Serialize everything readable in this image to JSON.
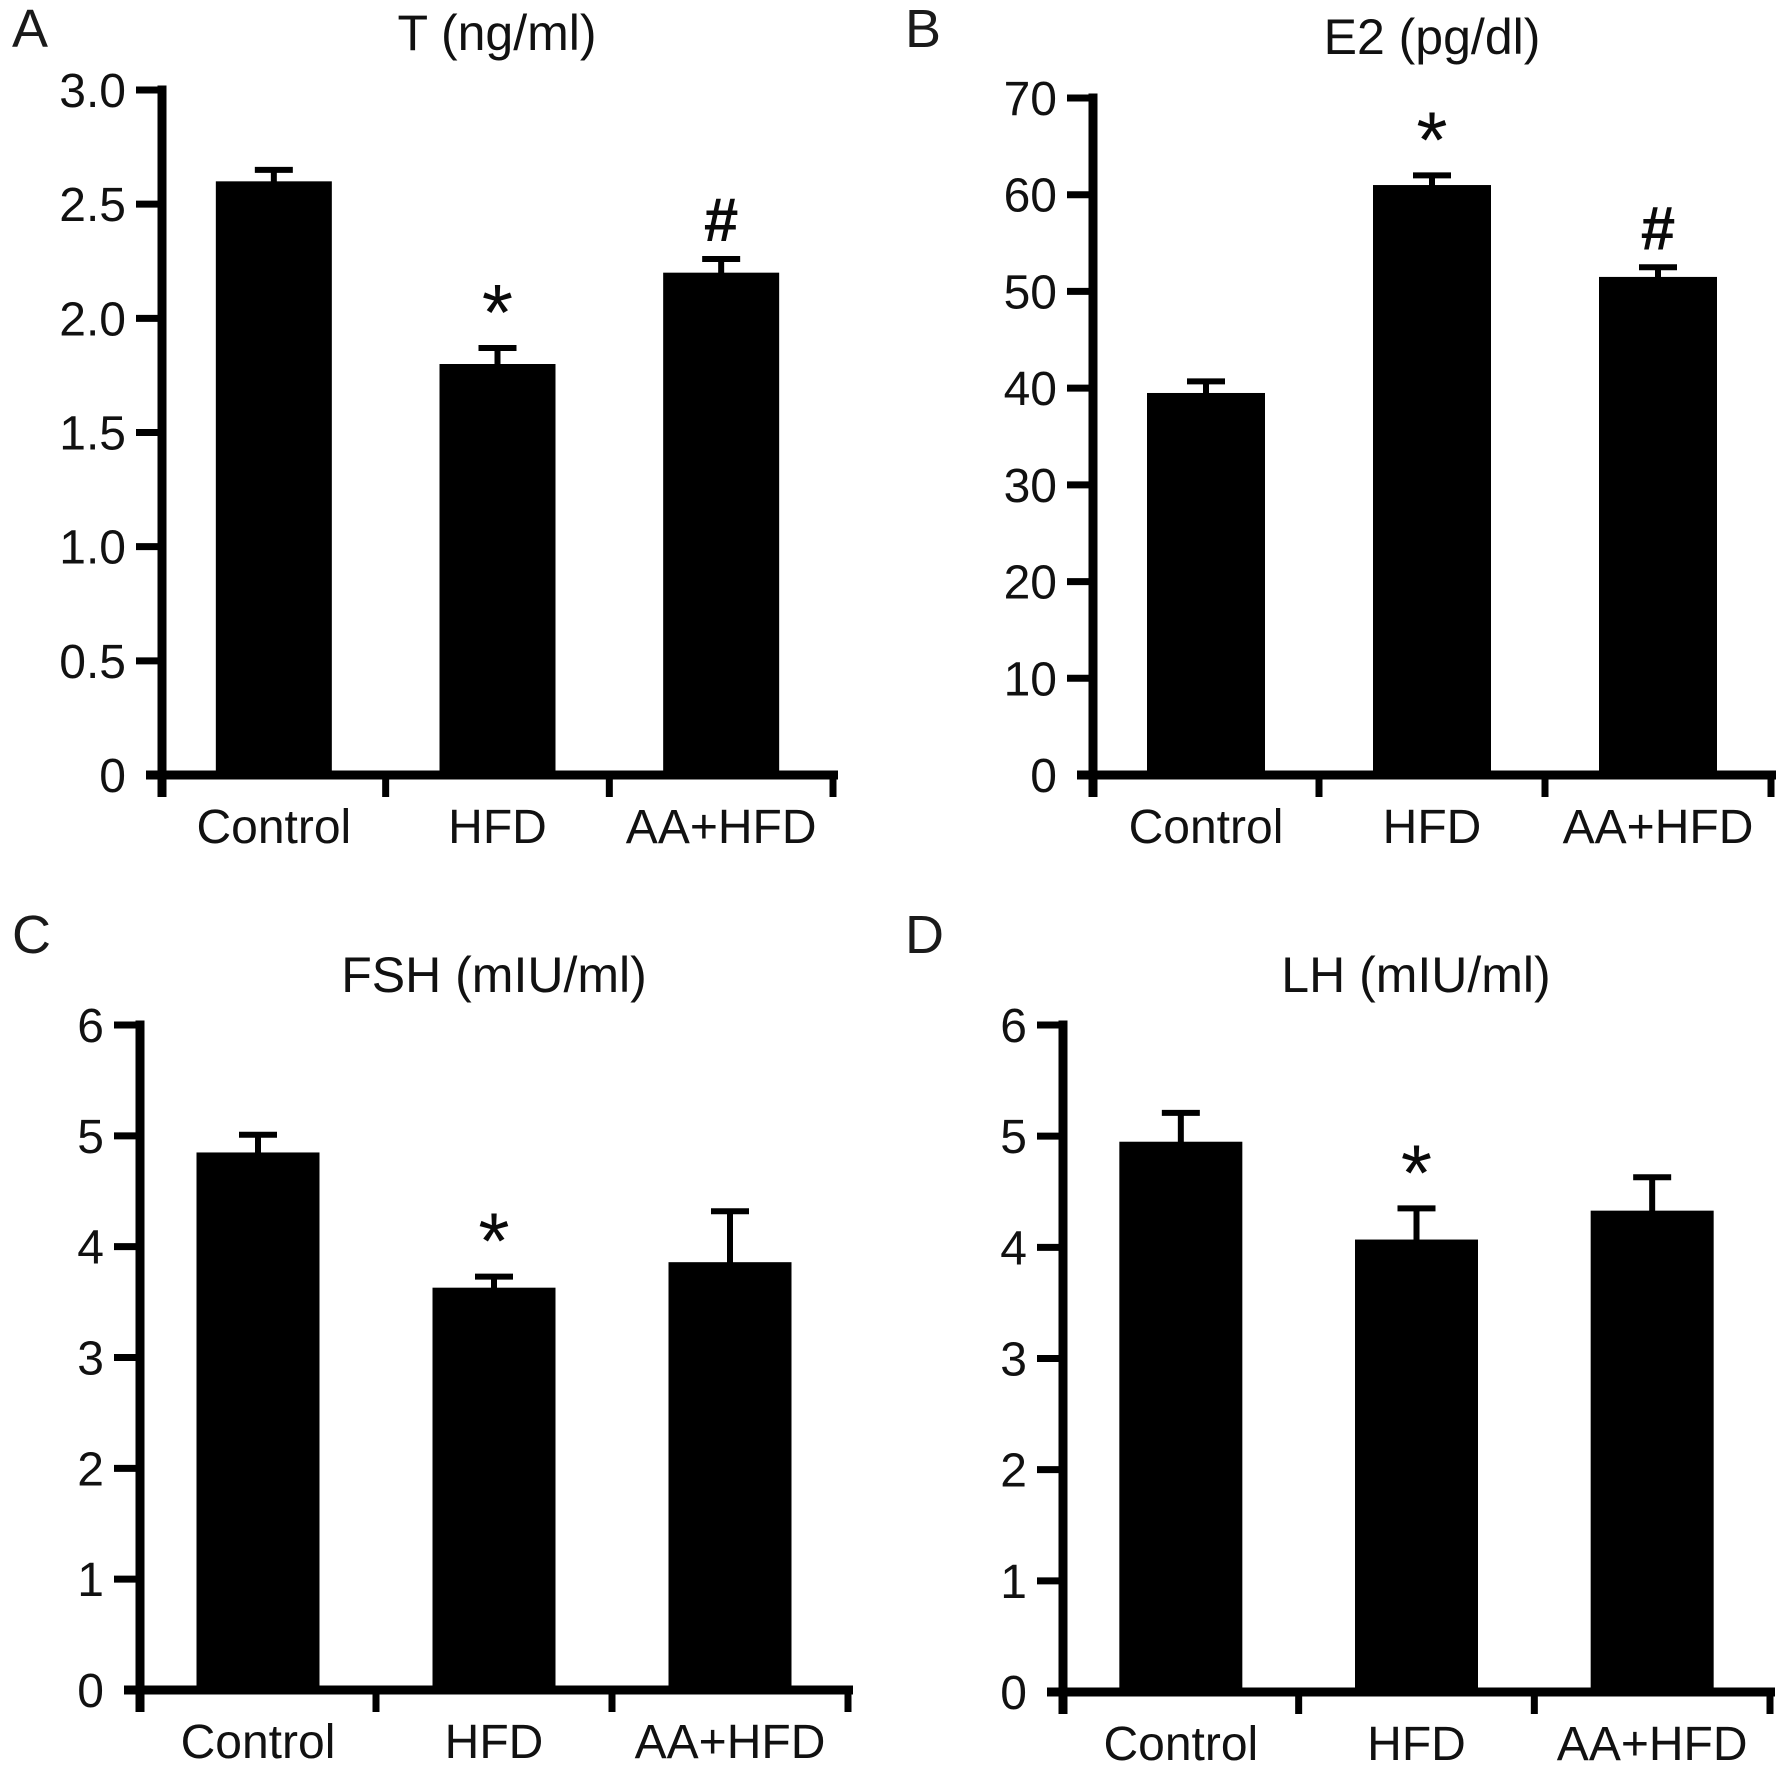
{
  "figure": {
    "background_color": "#ffffff",
    "bar_color": "#000000",
    "axis_color": "#000000",
    "text_color": "#111111"
  },
  "chart_data": [
    {
      "panel_label": "A",
      "type": "bar",
      "title": "T (ng/ml)",
      "categories": [
        "Control",
        "HFD",
        "AA+HFD"
      ],
      "values": [
        2.6,
        1.8,
        2.2
      ],
      "errors": [
        0.05,
        0.07,
        0.06
      ],
      "annotations": [
        "",
        "*",
        "#"
      ],
      "ylim": [
        0,
        3
      ],
      "yticks": [
        0,
        0.5,
        1,
        1.5,
        2,
        2.5,
        3
      ],
      "ytick_labels": [
        "0",
        "0.5",
        "1.0",
        "1.5",
        "2.0",
        "2.5",
        "3.0"
      ],
      "grid": "off",
      "legend": "none"
    },
    {
      "panel_label": "B",
      "type": "bar",
      "title": "E2 (pg/dl)",
      "categories": [
        "Control",
        "HFD",
        "AA+HFD"
      ],
      "values": [
        39.5,
        61,
        51.5
      ],
      "errors": [
        1.2,
        1.0,
        1.0
      ],
      "annotations": [
        "",
        "*",
        "#"
      ],
      "ylim": [
        0,
        70
      ],
      "yticks": [
        0,
        10,
        20,
        30,
        40,
        50,
        60,
        70
      ],
      "ytick_labels": [
        "0",
        "10",
        "20",
        "30",
        "40",
        "50",
        "60",
        "70"
      ],
      "grid": "off",
      "legend": "none"
    },
    {
      "panel_label": "C",
      "type": "bar",
      "title": "FSH (mIU/ml)",
      "categories": [
        "Control",
        "HFD",
        "AA+HFD"
      ],
      "values": [
        4.85,
        3.63,
        3.86
      ],
      "errors": [
        0.16,
        0.1,
        0.46
      ],
      "annotations": [
        "",
        "*",
        ""
      ],
      "ylim": [
        0,
        6
      ],
      "yticks": [
        0,
        1,
        2,
        3,
        4,
        5,
        6
      ],
      "ytick_labels": [
        "0",
        "1",
        "2",
        "3",
        "4",
        "5",
        "6"
      ],
      "grid": "off",
      "legend": "none"
    },
    {
      "panel_label": "D",
      "type": "bar",
      "title": "LH (mIU/ml)",
      "categories": [
        "Control",
        "HFD",
        "AA+HFD"
      ],
      "values": [
        4.95,
        4.07,
        4.33
      ],
      "errors": [
        0.26,
        0.28,
        0.3
      ],
      "annotations": [
        "",
        "*",
        ""
      ],
      "ylim": [
        0,
        6
      ],
      "yticks": [
        0,
        1,
        2,
        3,
        4,
        5,
        6
      ],
      "ytick_labels": [
        "0",
        "1",
        "2",
        "3",
        "4",
        "5",
        "6"
      ],
      "grid": "off",
      "legend": "none"
    }
  ]
}
